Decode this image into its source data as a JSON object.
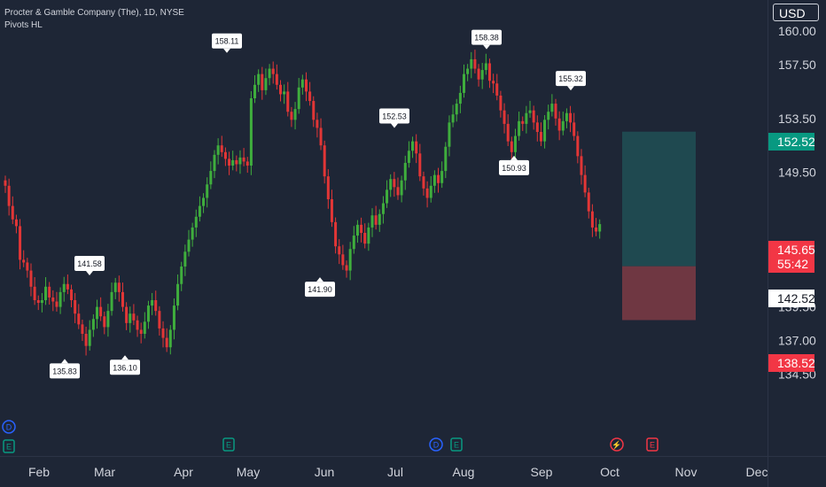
{
  "header": {
    "title": "Procter & Gamble Company (The), 1D, NYSE",
    "indicator": "Pivots HL"
  },
  "currency": "USD",
  "price_axis": {
    "ticks": [
      "160.00",
      "157.50",
      "153.50",
      "149.50",
      "139.50",
      "137.00",
      "134.50"
    ]
  },
  "time_axis": {
    "labels": [
      "Feb",
      "Mar",
      "Apr",
      "May",
      "Jun",
      "Jul",
      "Aug",
      "Sep",
      "Oct",
      "Nov",
      "Dec"
    ]
  },
  "price_tags": [
    {
      "value": "152.52",
      "bg": "#089981",
      "fg": "#ffffff"
    },
    {
      "value": "145.65",
      "sub": "55:42",
      "bg": "#f23645",
      "fg": "#ffffff"
    },
    {
      "value": "142.52",
      "bg": "#ffffff",
      "fg": "#131722"
    },
    {
      "value": "138.52",
      "bg": "#f23645",
      "fg": "#ffffff"
    }
  ],
  "pivot_labels": [
    {
      "text": "135.83",
      "pos": "below",
      "x": "Feb"
    },
    {
      "text": "141.58",
      "pos": "above",
      "x": "Feb"
    },
    {
      "text": "136.10",
      "pos": "below",
      "x": "Mar"
    },
    {
      "text": "158.11",
      "pos": "above",
      "x": "Apr"
    },
    {
      "text": "141.90",
      "pos": "below",
      "x": "May"
    },
    {
      "text": "152.53",
      "pos": "above",
      "x": "Jul"
    },
    {
      "text": "158.38",
      "pos": "above",
      "x": "Aug"
    },
    {
      "text": "150.93",
      "pos": "below",
      "x": "Aug"
    },
    {
      "text": "155.32",
      "pos": "above",
      "x": "Sep"
    }
  ],
  "event_markers": [
    {
      "type": "D",
      "color": "#2962ff"
    },
    {
      "type": "E",
      "color": "#089981"
    },
    {
      "type": "E",
      "color": "#089981"
    },
    {
      "type": "D",
      "color": "#2962ff"
    },
    {
      "type": "E",
      "color": "#089981"
    },
    {
      "type": "split",
      "color": "#f23645"
    },
    {
      "type": "E",
      "color": "#f23645"
    }
  ],
  "colors": {
    "up": "#3fae3d",
    "down": "#e23636",
    "bg": "#1e2636",
    "text": "#d1d4dc",
    "target_zone": "#1f4950",
    "stop_zone": "#6f3742"
  },
  "chart_data": {
    "type": "candlestick",
    "title": "Procter & Gamble Company (The), 1D, NYSE",
    "ylim": [
      133,
      161.5
    ],
    "y_ticks": [
      160.0,
      157.5,
      153.5,
      149.5,
      139.5,
      137.0,
      134.5
    ],
    "x_labels": [
      "Feb",
      "Mar",
      "Apr",
      "May",
      "Jun",
      "Jul",
      "Aug",
      "Sep",
      "Oct",
      "Nov",
      "Dec"
    ],
    "pivots": [
      {
        "type": "low",
        "value": 135.83,
        "month": "Feb"
      },
      {
        "type": "high",
        "value": 141.58,
        "month": "Feb"
      },
      {
        "type": "low",
        "value": 136.1,
        "month": "Mar"
      },
      {
        "type": "high",
        "value": 158.11,
        "month": "Apr"
      },
      {
        "type": "low",
        "value": 141.9,
        "month": "May"
      },
      {
        "type": "high",
        "value": 152.53,
        "month": "Jul"
      },
      {
        "type": "high",
        "value": 158.38,
        "month": "Aug"
      },
      {
        "type": "low",
        "value": 150.93,
        "month": "Aug"
      },
      {
        "type": "high",
        "value": 155.32,
        "month": "Sep"
      }
    ],
    "close_path": [
      148.5,
      147.0,
      146.0,
      145.5,
      143.0,
      142.8,
      142.2,
      141.0,
      140.0,
      139.8,
      140.0,
      141.0,
      140.2,
      139.9,
      139.5,
      140.6,
      141.2,
      140.8,
      140.0,
      139.0,
      138.2,
      137.5,
      136.6,
      137.8,
      138.6,
      139.5,
      138.8,
      138.0,
      139.2,
      140.6,
      141.3,
      140.6,
      139.5,
      138.3,
      139.0,
      138.5,
      137.8,
      137.5,
      138.4,
      139.6,
      140.0,
      139.2,
      137.9,
      137.2,
      136.5,
      137.8,
      139.6,
      141.2,
      142.5,
      143.6,
      144.5,
      145.4,
      146.2,
      147.0,
      147.6,
      148.6,
      149.6,
      150.8,
      151.5,
      151.0,
      150.5,
      150.0,
      150.4,
      150.1,
      150.6,
      150.3,
      150.0,
      155.0,
      156.0,
      156.8,
      155.6,
      156.5,
      157.2,
      156.8,
      156.0,
      155.3,
      155.5,
      154.0,
      153.4,
      154.2,
      155.8,
      156.4,
      155.5,
      154.8,
      153.4,
      152.8,
      151.5,
      149.2,
      147.5,
      145.8,
      144.0,
      143.4,
      142.6,
      142.2,
      143.8,
      144.8,
      145.6,
      145.0,
      144.2,
      145.4,
      146.3,
      145.6,
      146.4,
      147.2,
      148.2,
      149.0,
      148.4,
      147.8,
      148.9,
      150.2,
      151.1,
      151.8,
      150.9,
      149.2,
      148.3,
      147.6,
      148.5,
      149.3,
      148.7,
      149.6,
      151.4,
      153.2,
      153.8,
      154.6,
      155.4,
      156.8,
      157.2,
      157.9,
      157.2,
      156.4,
      157.1,
      157.6,
      156.3,
      156.1,
      155.2,
      154.1,
      153.1,
      151.8,
      151.0,
      152.2,
      153.3,
      153.1,
      153.9,
      154.1,
      153.2,
      152.5,
      151.8,
      153.4,
      154.0,
      154.6,
      153.5,
      152.6,
      153.3,
      153.9,
      153.2,
      152.2,
      150.7,
      149.3,
      148.0,
      146.6,
      145.4,
      145.1,
      145.65
    ],
    "trade_zone": {
      "entry": 142.52,
      "target": 152.52,
      "stop": 138.52
    },
    "last_price": 145.65,
    "countdown": "55:42"
  }
}
